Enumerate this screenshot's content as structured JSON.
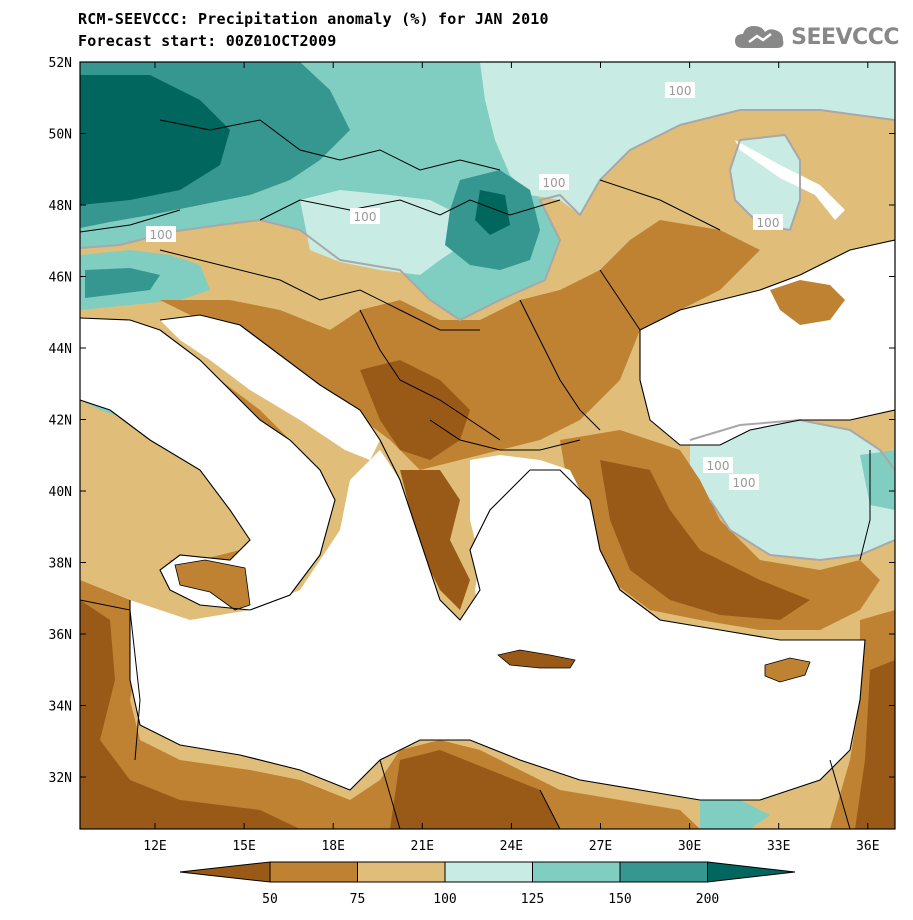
{
  "header": {
    "title": "RCM-SEEVCCC: Precipitation anomaly (%) for JAN 2010",
    "subtitle": "Forecast start: 00Z01OCT2009",
    "logo_text": "SEEVCCC"
  },
  "map": {
    "lat_labels": [
      "52N",
      "50N",
      "48N",
      "46N",
      "44N",
      "42N",
      "40N",
      "38N",
      "36N",
      "34N",
      "32N"
    ],
    "lon_labels": [
      "12E",
      "15E",
      "18E",
      "21E",
      "24E",
      "27E",
      "30E",
      "33E",
      "36E"
    ],
    "contour_labels": [
      "100",
      "100",
      "100",
      "100",
      "100",
      "100",
      "100"
    ],
    "colors": {
      "dark_brown": "#9a5a17",
      "brown": "#bf8233",
      "tan": "#e0be7a",
      "light_teal": "#c8ece4",
      "teal": "#80cdc1",
      "dark_teal": "#35978f",
      "darkest_teal": "#01665e",
      "sea": "#ffffff",
      "contour": "#a8a8a8"
    }
  },
  "colorbar": {
    "ticks": [
      "50",
      "75",
      "100",
      "125",
      "150",
      "200"
    ],
    "colors": [
      "#9a5a17",
      "#bf8233",
      "#e0be7a",
      "#c8ece4",
      "#80cdc1",
      "#35978f",
      "#01665e"
    ]
  }
}
